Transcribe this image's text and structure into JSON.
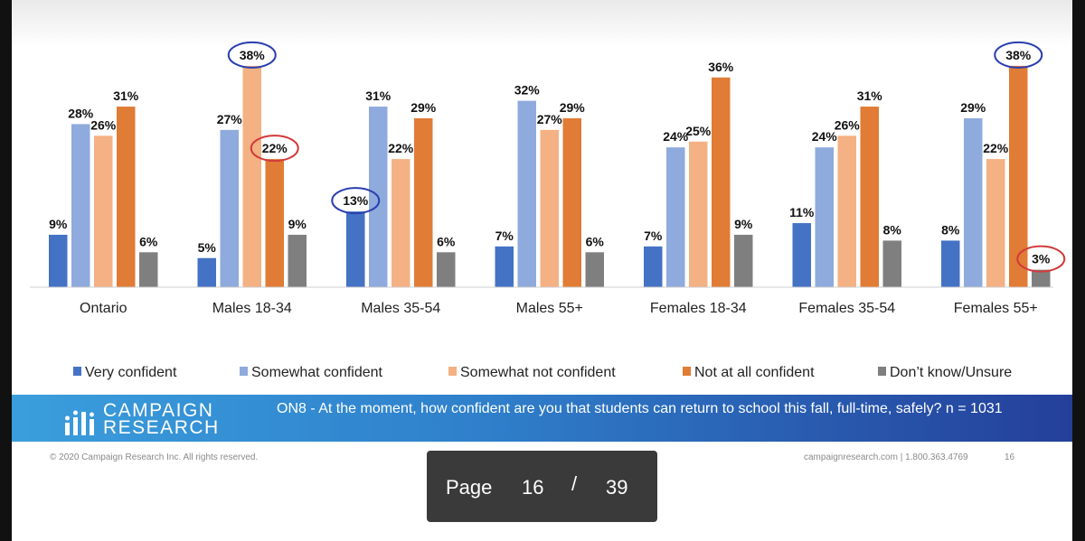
{
  "chart_data": {
    "type": "bar",
    "categories": [
      "Ontario",
      "Males 18-34",
      "Males 35-54",
      "Males 55+",
      "Females 18-34",
      "Females 35-54",
      "Females 55+"
    ],
    "series": [
      {
        "name": "Very confident",
        "color": "#4472c4",
        "values": [
          9,
          5,
          13,
          7,
          7,
          11,
          8
        ]
      },
      {
        "name": "Somewhat confident",
        "color": "#8faadc",
        "values": [
          28,
          27,
          31,
          32,
          24,
          24,
          29
        ]
      },
      {
        "name": "Somewhat not confident",
        "color": "#f4b183",
        "values": [
          26,
          38,
          22,
          27,
          25,
          26,
          22
        ]
      },
      {
        "name": "Not at all confident",
        "color": "#e07c35",
        "values": [
          31,
          22,
          29,
          29,
          36,
          31,
          38
        ]
      },
      {
        "name": "Don’t know/Unsure",
        "color": "#7f7f7f",
        "values": [
          6,
          9,
          6,
          6,
          9,
          8,
          3
        ]
      }
    ],
    "value_suffix": "%",
    "ylim": [
      0,
      38
    ],
    "grid": false,
    "legend_position": "bottom",
    "highlights": [
      {
        "category": "Males 18-34",
        "series": "Somewhat not confident",
        "color": "#2a3fb0"
      },
      {
        "category": "Males 18-34",
        "series": "Not at all confident",
        "color": "#d23a3a"
      },
      {
        "category": "Males 35-54",
        "series": "Very confident",
        "color": "#2a3fb0"
      },
      {
        "category": "Females 55+",
        "series": "Not at all confident",
        "color": "#2a3fb0"
      },
      {
        "category": "Females 55+",
        "series": "Don’t know/Unsure",
        "color": "#d23a3a"
      }
    ]
  },
  "banner": {
    "logo_line1": "CAMPAIGN",
    "logo_line2": "RESEARCH",
    "question": "ON8 - At the moment, how confident are you that students can return to school this fall, full-time, safely? n = 1031"
  },
  "footer": {
    "copyright": "© 2020 Campaign Research Inc. All rights reserved.",
    "contact": "campaignresearch.com | 1.800.363.4769",
    "slide_number": "16"
  },
  "pager": {
    "label": "Page",
    "current": "16",
    "separator": "/",
    "total": "39"
  }
}
